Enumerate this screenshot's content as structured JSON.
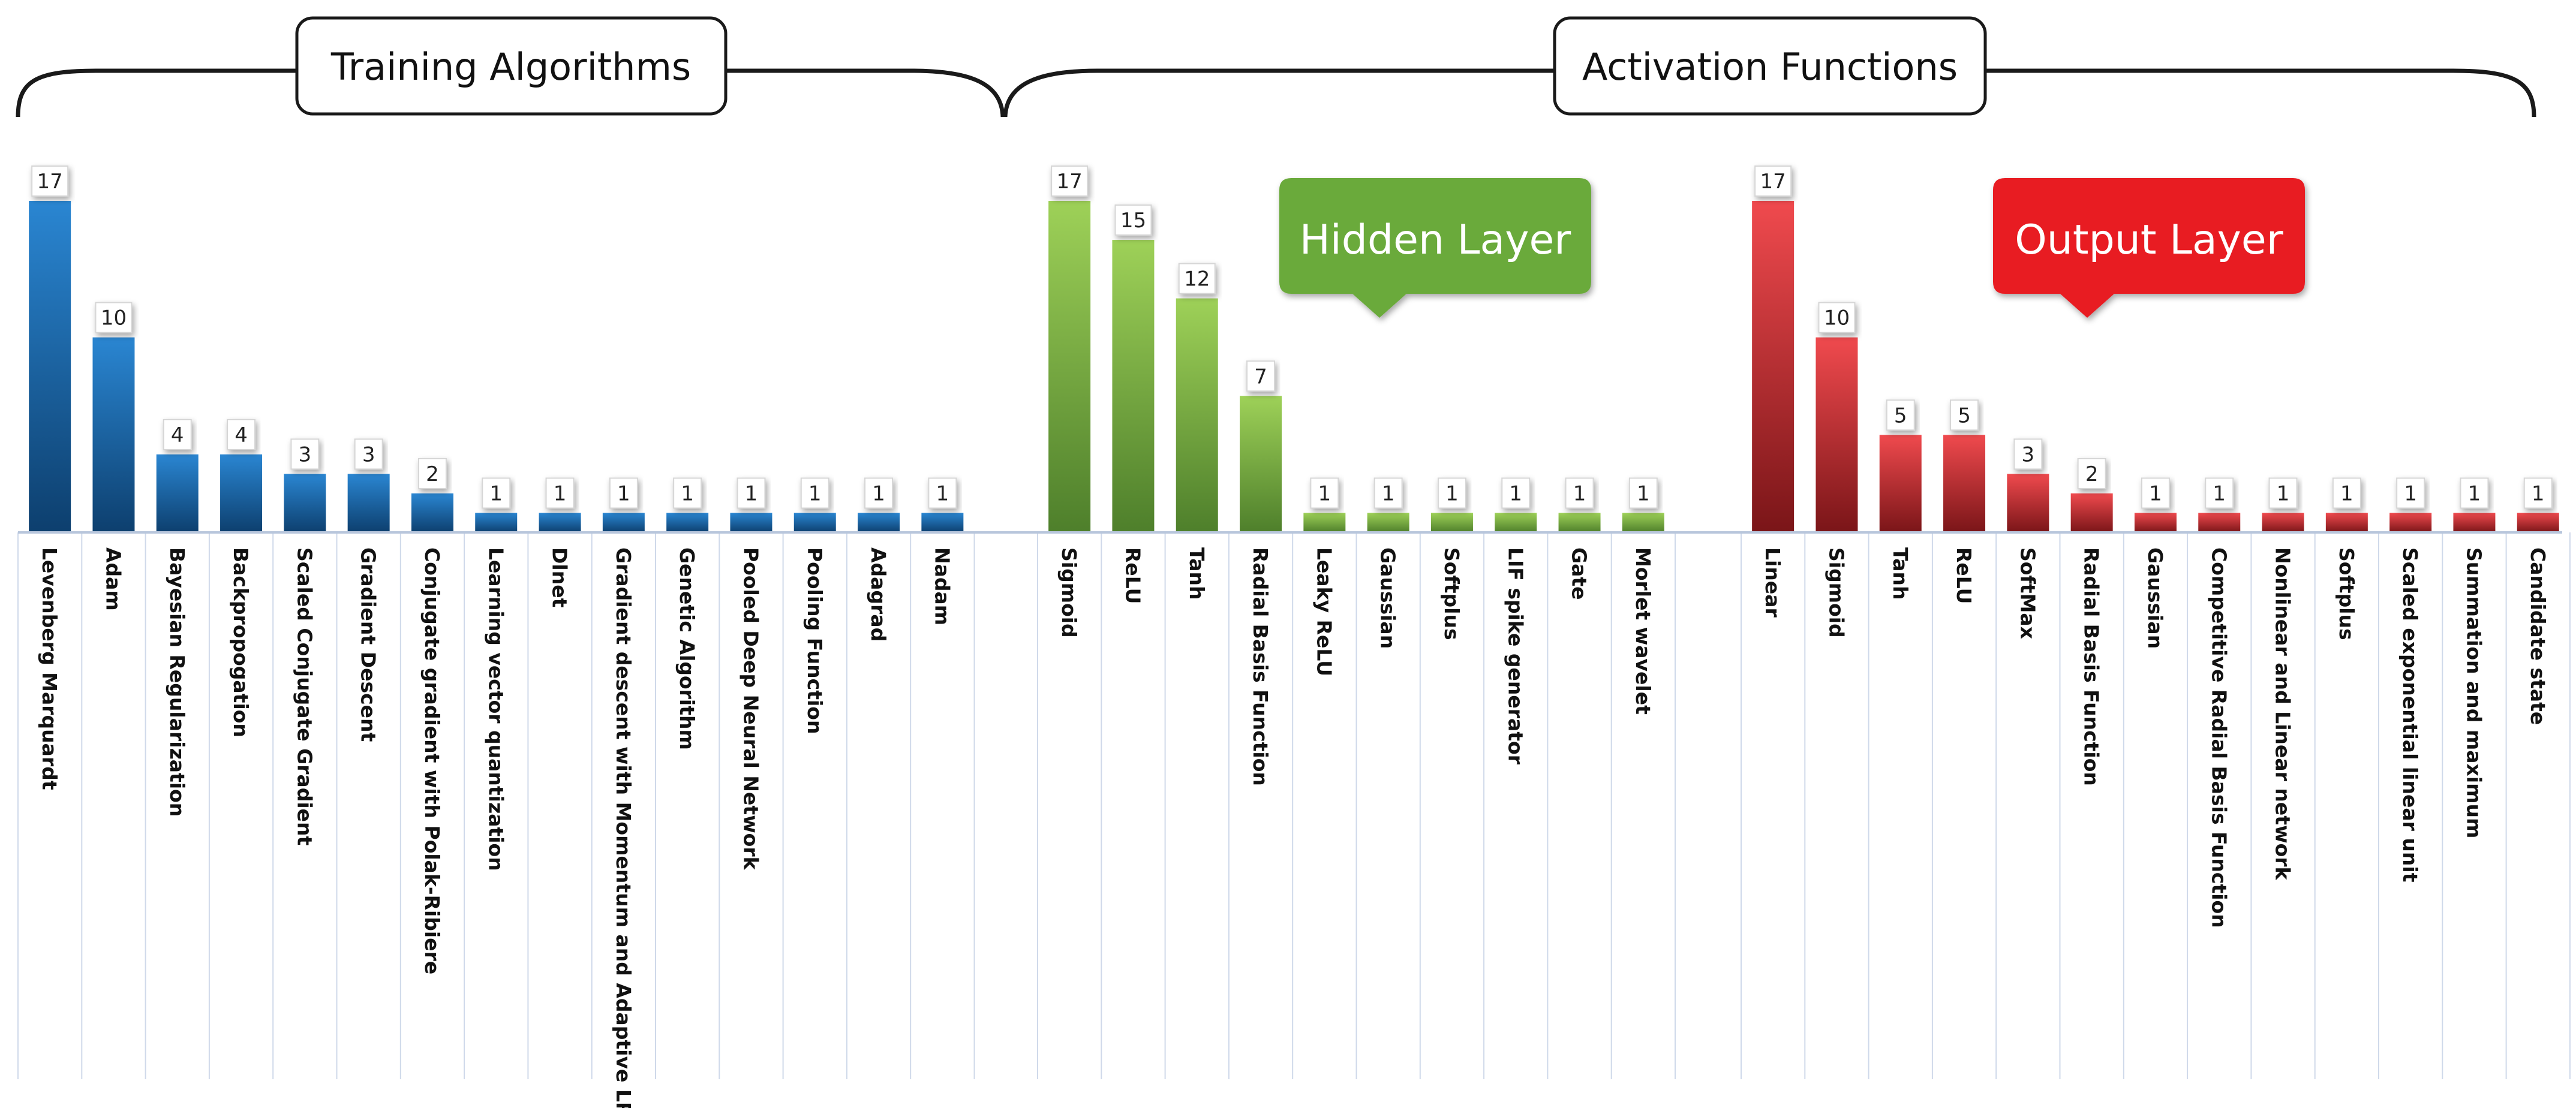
{
  "colors": {
    "training": "#1e6fb8",
    "hidden": "#76b843",
    "output": "#e0262b",
    "hidden_callout": "#6aaa3a",
    "output_callout": "#e81c23"
  },
  "headers": {
    "training": "Training Algorithms",
    "activation": "Activation Functions"
  },
  "callouts": {
    "hidden": "Hidden Layer",
    "output": "Output Layer"
  },
  "chart_data": [
    {
      "type": "bar",
      "group": "Training Algorithms",
      "categories": [
        "Levenberg Marquardt",
        "Adam",
        "Bayesian Regularization",
        "Backpropogation",
        "Scaled Conjugate Gradient",
        "Gradient Descent",
        "Conjugate gradient with Polak-Ribiere",
        "Learning vector quantization",
        "Dlnet",
        "Gradient descent with Momentum and Adaptive LR",
        "Genetic Algorithm",
        "Pooled Deep Neural Network",
        "Pooling Function",
        "Adagrad",
        "Nadam"
      ],
      "values": [
        17,
        10,
        4,
        4,
        3,
        3,
        2,
        1,
        1,
        1,
        1,
        1,
        1,
        1,
        1
      ],
      "ylim": [
        0,
        17
      ]
    },
    {
      "type": "bar",
      "group": "Hidden Layer",
      "categories": [
        "Sigmoid",
        "ReLU",
        "Tanh",
        "Radial Basis Function",
        "Leaky ReLU",
        "Gaussian",
        "Softplus",
        "LIF spike generator",
        "Gate",
        "Morlet wavelet"
      ],
      "values": [
        17,
        15,
        12,
        7,
        1,
        1,
        1,
        1,
        1,
        1
      ],
      "ylim": [
        0,
        17
      ]
    },
    {
      "type": "bar",
      "group": "Output Layer",
      "categories": [
        "Linear",
        "Sigmoid",
        "Tanh",
        "ReLU",
        "SoftMax",
        "Radial Basis Function",
        "Gaussian",
        "Competitive Radial Basis Function",
        "Nonlinear and Linear network",
        "Softplus",
        "Scaled exponential linear unit",
        "Summation and maximum",
        "Candidate state"
      ],
      "values": [
        17,
        10,
        5,
        5,
        3,
        2,
        1,
        1,
        1,
        1,
        1,
        1,
        1
      ],
      "ylim": [
        0,
        17
      ]
    }
  ]
}
